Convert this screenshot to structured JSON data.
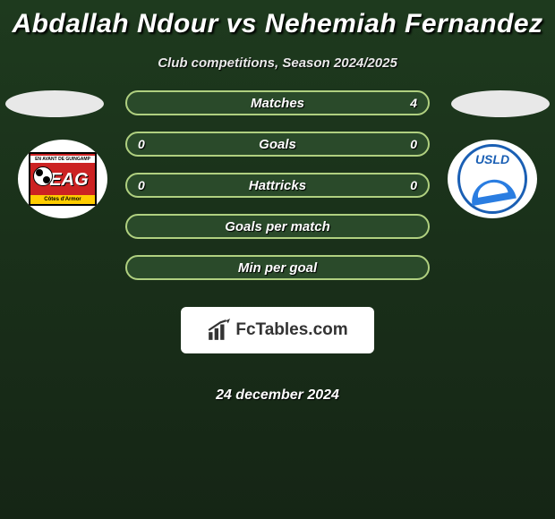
{
  "title": "Abdallah Ndour vs Nehemiah Fernandez",
  "subtitle": "Club competitions, Season 2024/2025",
  "date": "24 december 2024",
  "attribution": "FcTables.com",
  "colors": {
    "row_border": "#b0d080",
    "row_fill": "#2a4a2a",
    "title": "#ffffff",
    "background": "#1a2a1a"
  },
  "rows": [
    {
      "label": "Matches",
      "left": "",
      "right": "4"
    },
    {
      "label": "Goals",
      "left": "0",
      "right": "0"
    },
    {
      "label": "Hattricks",
      "left": "0",
      "right": "0"
    },
    {
      "label": "Goals per match",
      "left": "",
      "right": ""
    },
    {
      "label": "Min per goal",
      "left": "",
      "right": ""
    }
  ],
  "clubs": {
    "left": {
      "badge": "EAG",
      "top_text": "EN AVANT DE GUINGAMP",
      "bottom_text": "Côtes d'Armor",
      "primary": "#cc2222",
      "accent": "#ffcc00"
    },
    "right": {
      "badge": "USLD",
      "primary": "#1a5fb4",
      "accent": "#2a7de1"
    }
  }
}
